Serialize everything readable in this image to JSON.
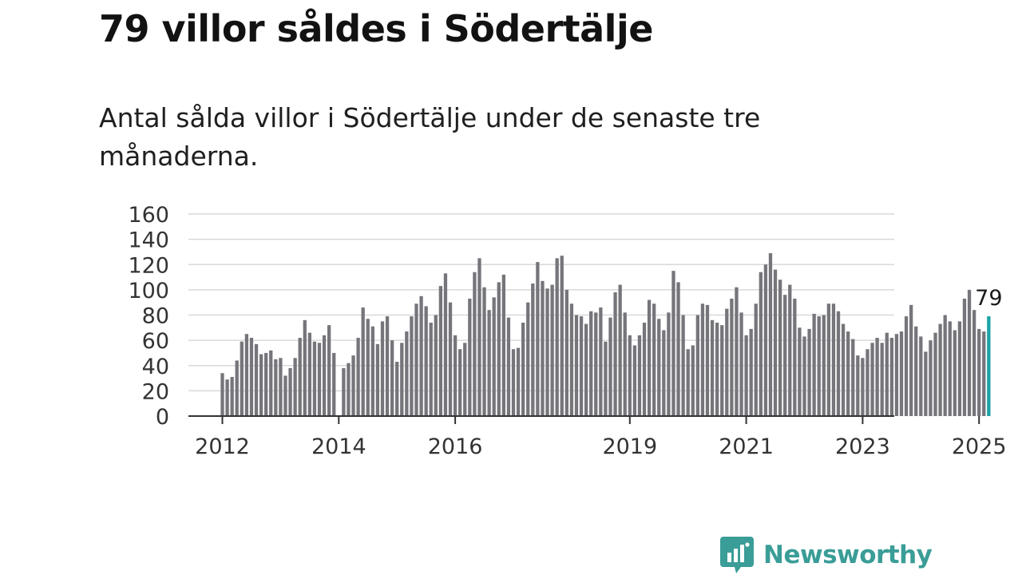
{
  "header": {
    "title": "79 villor såldes i Södertälje",
    "subtitle": "Antal sålda villor i Södertälje under de senaste tre månaderna."
  },
  "brand": {
    "name": "Newsworthy"
  },
  "colors": {
    "bar": "#76757b",
    "highlight": "#1aa3a6",
    "grid": "#d9d9d9",
    "axis": "#333333",
    "brand": "#3a9d97"
  },
  "chart_data": {
    "type": "bar",
    "x_start": "2012-01",
    "ylim": [
      0,
      160
    ],
    "yticks": [
      0,
      20,
      40,
      60,
      80,
      100,
      120,
      140,
      160
    ],
    "xticks": [
      "2012",
      "2014",
      "2016",
      "2019",
      "2021",
      "2023",
      "2025"
    ],
    "grid": true,
    "highlight_label": "79",
    "values": [
      34,
      29,
      31,
      44,
      59,
      65,
      62,
      57,
      49,
      50,
      52,
      45,
      46,
      32,
      38,
      46,
      62,
      76,
      66,
      59,
      58,
      64,
      72,
      50,
      0,
      38,
      42,
      48,
      62,
      86,
      77,
      71,
      57,
      75,
      79,
      60,
      43,
      58,
      67,
      79,
      89,
      95,
      87,
      74,
      80,
      103,
      113,
      90,
      64,
      53,
      58,
      93,
      114,
      125,
      102,
      84,
      94,
      106,
      112,
      78,
      53,
      54,
      74,
      90,
      105,
      122,
      107,
      101,
      104,
      125,
      127,
      100,
      89,
      80,
      79,
      73,
      83,
      82,
      86,
      59,
      78,
      98,
      104,
      82,
      64,
      56,
      64,
      74,
      92,
      89,
      77,
      68,
      82,
      115,
      106,
      80,
      53,
      56,
      80,
      89,
      88,
      76,
      74,
      72,
      85,
      93,
      102,
      82,
      64,
      69,
      89,
      114,
      120,
      129,
      116,
      108,
      96,
      104,
      93,
      70,
      63,
      69,
      81,
      79,
      80,
      89,
      89,
      83,
      73,
      67,
      61,
      48,
      46,
      53,
      58,
      62,
      58,
      66,
      62,
      65,
      67,
      79,
      88,
      71,
      63,
      51,
      60,
      66,
      73,
      80,
      75,
      68,
      75,
      93,
      100,
      84,
      69,
      67,
      79
    ]
  }
}
